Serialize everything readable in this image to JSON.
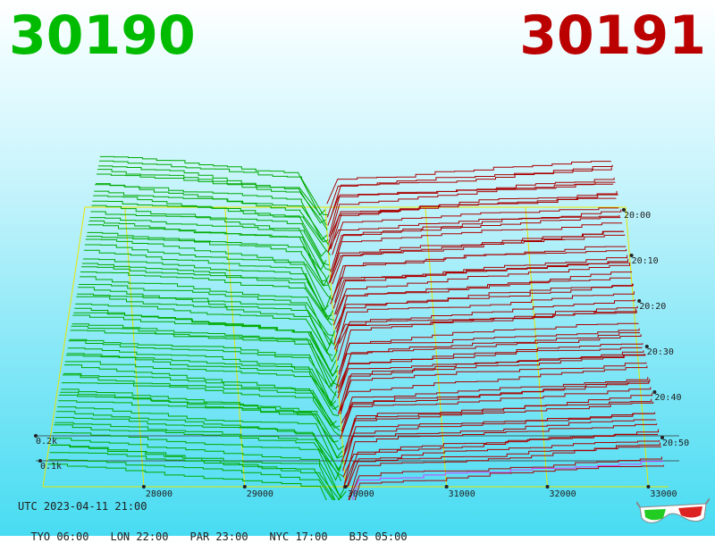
{
  "header": {
    "bid_price": "30190",
    "ask_price": "30191",
    "bid_color": "#00bb00",
    "ask_color": "#bb0000"
  },
  "footer": {
    "utc": "UTC 2023-04-11 21:00",
    "zones": [
      "TYO 06:00",
      "LON 22:00",
      "PAR 23:00",
      "NYC 17:00",
      "BJS 05:00"
    ]
  },
  "icons": {
    "glasses": "3d-glasses-icon"
  },
  "chart_data": {
    "type": "area",
    "x_ticks": [
      "28000",
      "29000",
      "30000",
      "31000",
      "32000",
      "33000"
    ],
    "xlim": [
      27000,
      33200
    ],
    "time_labels": [
      "20:00",
      "20:10",
      "20:20",
      "20:30",
      "20:40",
      "20:50"
    ],
    "volume_labels": [
      "0.2k",
      "0.1k"
    ],
    "colors": {
      "bid": "#00aa00",
      "ask": "#aa0000",
      "grid": "#e6e600",
      "latest": "#cc44ff",
      "base": "#333333"
    }
  }
}
